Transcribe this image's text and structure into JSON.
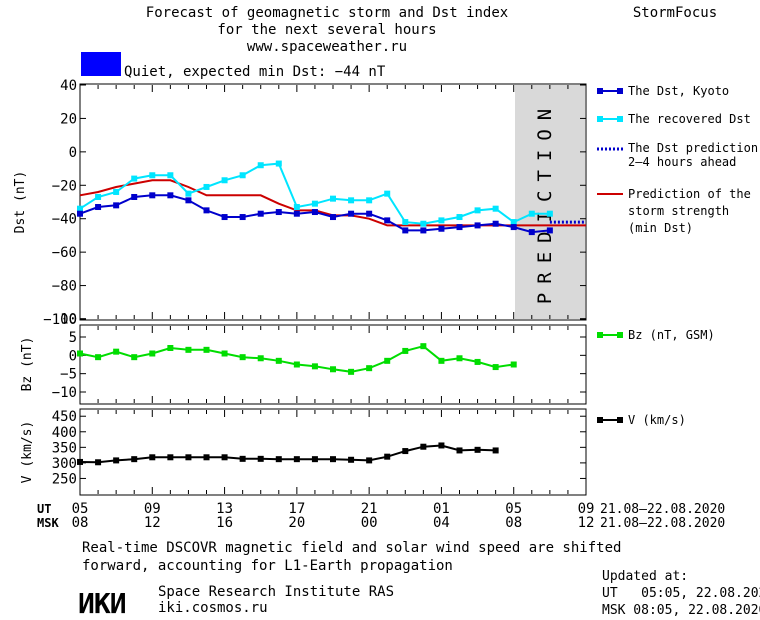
{
  "header": {
    "title_line1": "Forecast of geomagnetic storm and Dst index",
    "title_line2": "for the next several hours",
    "title_line3": "www.spaceweather.ru",
    "brand": "StormFocus",
    "status_text": "Quiet, expected min Dst: −44 nT",
    "status_color": "#0000ff"
  },
  "panels": {
    "dst": {
      "ylabel": "Dst (nT)",
      "yticks": [
        "40",
        "20",
        "0",
        "−20",
        "−40",
        "−60",
        "−80",
        "−100"
      ],
      "ylim": [
        -100,
        40
      ],
      "prediction_label": "PREDICTION"
    },
    "bz": {
      "ylabel": "Bz (nT)",
      "yticks": [
        "10",
        "5",
        "0",
        "−5",
        "−10"
      ],
      "ylim": [
        -13,
        8
      ]
    },
    "v": {
      "ylabel": "V (km/s)",
      "yticks": [
        "450",
        "400",
        "350",
        "300",
        "250"
      ],
      "ylim": [
        200,
        470
      ]
    }
  },
  "legend": {
    "dst_kyoto": "The Dst, Kyoto",
    "recovered": "The recovered Dst",
    "prediction_line1": "The Dst prediction",
    "prediction_line2": "2–4 hours ahead",
    "strength_line1": "Prediction of the",
    "strength_line2": "storm strength",
    "strength_line3": "(min Dst)",
    "bz": "Bz (nT, GSM)",
    "v": "V (km/s)"
  },
  "time_axis": {
    "ut_label": "UT",
    "msk_label": "MSK",
    "ut_ticks": [
      "05",
      "09",
      "13",
      "17",
      "21",
      "01",
      "05",
      "09"
    ],
    "msk_ticks": [
      "08",
      "12",
      "16",
      "20",
      "00",
      "04",
      "08",
      "12"
    ],
    "date_range_ut": "21.08–22.08.2020",
    "date_range_msk": "21.08–22.08.2020"
  },
  "footer": {
    "note_line1": "Real-time DSCOVR magnetic field and solar wind speed are shifted",
    "note_line2": "forward, accounting for L1-Earth propagation",
    "logo_text": "ИКИ",
    "institute": "Space Research Institute RAS",
    "site": "iki.cosmos.ru",
    "updated_label": "Updated at:",
    "updated_ut": "UT   05:05, 22.08.2020",
    "updated_msk": "MSK 08:05, 22.08.2020"
  },
  "colors": {
    "kyoto": "#0000cc",
    "recovered": "#00e5ff",
    "prediction": "#0000cc",
    "strength": "#cc0000",
    "bz": "#00dd00",
    "v": "#000000",
    "shade": "#d9d9d9"
  },
  "chart_data": [
    {
      "type": "line",
      "x_unit": "hours UT from 05:00 21.08.2020",
      "xlim": [
        0,
        28
      ],
      "ylim": [
        -100,
        40
      ],
      "series": [
        {
          "name": "The Dst, Kyoto",
          "x": [
            0,
            1,
            2,
            3,
            4,
            5,
            6,
            7,
            8,
            9,
            10,
            11,
            12,
            13,
            14,
            15,
            16,
            17,
            18,
            19,
            20,
            21,
            22,
            23,
            24,
            25,
            26
          ],
          "y": [
            -37,
            -33,
            -32,
            -27,
            -26,
            -26,
            -29,
            -35,
            -39,
            -39,
            -37,
            -36,
            -37,
            -36,
            -39,
            -37,
            -37,
            -41,
            -47,
            -47,
            -46,
            -45,
            -44,
            -43,
            -45,
            -48,
            -47
          ]
        },
        {
          "name": "The recovered Dst",
          "x": [
            0,
            1,
            2,
            3,
            4,
            5,
            6,
            7,
            8,
            9,
            10,
            11,
            12,
            13,
            14,
            15,
            16,
            17,
            18,
            19,
            20,
            21,
            22,
            23,
            24,
            25,
            26
          ],
          "y": [
            -34,
            -27,
            -24,
            -16,
            -14,
            -14,
            -25,
            -21,
            -17,
            -14,
            -8,
            -7,
            -33,
            -31,
            -28,
            -29,
            -29,
            -25,
            -42,
            -43,
            -41,
            -39,
            -35,
            -34,
            -42,
            -37,
            -37
          ]
        },
        {
          "name": "The Dst prediction 2–4 hours ahead",
          "x": [
            26,
            27,
            28
          ],
          "y": [
            -42,
            -42,
            -42
          ]
        },
        {
          "name": "Prediction of the storm strength (min Dst)",
          "x": [
            0,
            1,
            2,
            3,
            4,
            5,
            6,
            7,
            8,
            9,
            10,
            11,
            12,
            13,
            14,
            15,
            16,
            17,
            18,
            19,
            20,
            21,
            22,
            23,
            24,
            25,
            26,
            27,
            28
          ],
          "y": [
            -26,
            -24,
            -21,
            -19,
            -17,
            -17,
            -21,
            -26,
            -26,
            -26,
            -26,
            -31,
            -35,
            -35,
            -38,
            -38,
            -40,
            -44,
            -44,
            -44,
            -44,
            -44,
            -44,
            -44,
            -44,
            -44,
            -44,
            -44,
            -44
          ]
        }
      ],
      "prediction_window": [
        26,
        28
      ]
    },
    {
      "type": "line",
      "x_unit": "hours UT from 05:00 21.08.2020",
      "xlim": [
        0,
        28
      ],
      "ylim": [
        -13,
        8
      ],
      "series": [
        {
          "name": "Bz (nT, GSM)",
          "x": [
            0,
            1,
            2,
            3,
            4,
            5,
            6,
            7,
            8,
            9,
            10,
            11,
            12,
            13,
            14,
            15,
            16,
            17,
            18,
            19,
            20,
            21,
            22,
            23,
            24,
            25,
            26
          ],
          "y": [
            0.5,
            -0.5,
            1,
            -0.5,
            0.5,
            2,
            1.5,
            1.5,
            0.5,
            -0.5,
            -0.8,
            -1.5,
            -2.5,
            -3,
            -3.8,
            -4.5,
            -3.5,
            -1.5,
            1.2,
            2.5,
            -1.5,
            -0.8,
            -1.8,
            -3.2,
            -2.5,
            null,
            null
          ]
        }
      ]
    },
    {
      "type": "line",
      "x_unit": "hours UT from 05:00 21.08.2020",
      "xlim": [
        0,
        28
      ],
      "ylim": [
        200,
        470
      ],
      "series": [
        {
          "name": "V (km/s)",
          "x": [
            0,
            1,
            2,
            3,
            4,
            5,
            6,
            7,
            8,
            9,
            10,
            11,
            12,
            13,
            14,
            15,
            16,
            17,
            18,
            19,
            20,
            21,
            22,
            23,
            24,
            25,
            26
          ],
          "y": [
            303,
            302,
            308,
            312,
            318,
            318,
            318,
            318,
            318,
            313,
            313,
            312,
            312,
            312,
            312,
            310,
            308,
            320,
            338,
            352,
            356,
            340,
            342,
            340,
            null,
            null,
            null
          ]
        }
      ]
    }
  ]
}
